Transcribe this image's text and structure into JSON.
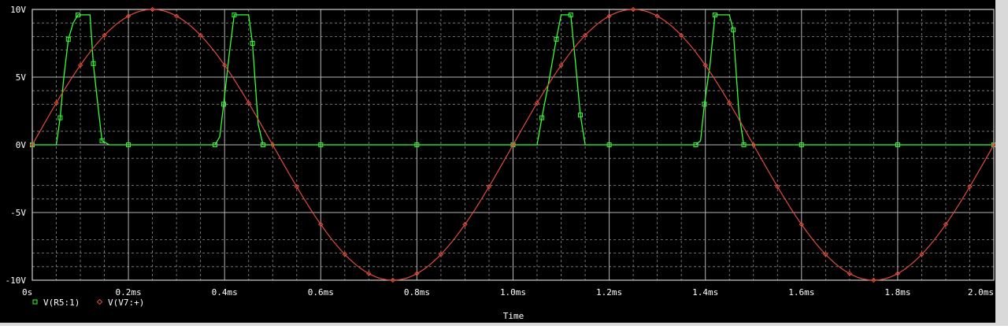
{
  "chart_data": {
    "type": "line",
    "xlabel": "Time",
    "xlim": [
      0,
      2.0
    ],
    "ylim": [
      -10,
      10
    ],
    "x_ticks": [
      {
        "value": 0,
        "label": "0s"
      },
      {
        "value": 0.2,
        "label": "0.2ms"
      },
      {
        "value": 0.4,
        "label": "0.4ms"
      },
      {
        "value": 0.6,
        "label": "0.6ms"
      },
      {
        "value": 0.8,
        "label": "0.8ms"
      },
      {
        "value": 1.0,
        "label": "1.0ms"
      },
      {
        "value": 1.2,
        "label": "1.2ms"
      },
      {
        "value": 1.4,
        "label": "1.4ms"
      },
      {
        "value": 1.6,
        "label": "1.6ms"
      },
      {
        "value": 1.8,
        "label": "1.8ms"
      },
      {
        "value": 2.0,
        "label": "2.0ms"
      }
    ],
    "y_ticks": [
      {
        "value": 10,
        "label": "10V"
      },
      {
        "value": 5,
        "label": "5V"
      },
      {
        "value": 0,
        "label": "0V"
      },
      {
        "value": -5,
        "label": "-5V"
      },
      {
        "value": -10,
        "label": "-10V"
      }
    ],
    "grid": true,
    "legend_position": "bottom-left",
    "series": [
      {
        "name": "V(R5:1)",
        "color": "#33ff33",
        "marker": "square",
        "x": [
          0,
          0.05,
          0.058,
          0.065,
          0.075,
          0.085,
          0.095,
          0.12,
          0.127,
          0.135,
          0.145,
          0.16,
          0.2,
          0.3,
          0.38,
          0.39,
          0.398,
          0.41,
          0.42,
          0.45,
          0.458,
          0.47,
          0.48,
          0.5,
          0.6,
          0.7,
          0.8,
          0.9,
          1.0,
          1.05,
          1.06,
          1.075,
          1.09,
          1.1,
          1.12,
          1.13,
          1.14,
          1.15,
          1.2,
          1.3,
          1.38,
          1.39,
          1.398,
          1.41,
          1.42,
          1.45,
          1.458,
          1.47,
          1.48,
          1.5,
          1.6,
          1.7,
          1.8,
          1.9,
          2.0
        ],
        "y": [
          0,
          0,
          2.0,
          4.8,
          7.8,
          9.0,
          9.6,
          9.6,
          6.0,
          3.4,
          0.3,
          0,
          0,
          0,
          0,
          0.6,
          3.0,
          6.8,
          9.6,
          9.6,
          7.5,
          1.5,
          0,
          0,
          0,
          0,
          0,
          0,
          0,
          0,
          2.0,
          4.8,
          7.8,
          9.6,
          9.6,
          6.0,
          2.2,
          0,
          0,
          0,
          0,
          0.3,
          3.0,
          6.0,
          9.6,
          9.6,
          8.5,
          2.3,
          0,
          0,
          0,
          0,
          0,
          0,
          0
        ]
      },
      {
        "name": "V(V7:+)",
        "color": "#e04a3c",
        "marker": "diamond",
        "function": "sine",
        "amplitude": 10,
        "frequency_per_ms": 1
      }
    ]
  }
}
